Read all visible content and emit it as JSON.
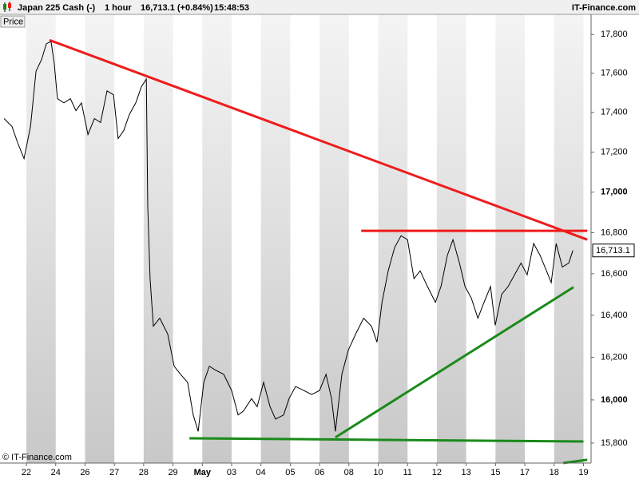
{
  "chart_data": {
    "type": "line",
    "title": "Japan 225 Cash (-)",
    "interval": "1 hour",
    "last_quote": "16,713.1 (+0.84%)",
    "time": "15:48:53",
    "source": "IT-Finance.com",
    "y_label": "Price",
    "copyright": "© IT-Finance.com",
    "log_scale": true,
    "xlim": [
      -0.9,
      19.26
    ],
    "ylim": [
      15708,
      17905
    ],
    "xticks": [
      {
        "value": 0,
        "label": "22"
      },
      {
        "value": 1,
        "label": "24"
      },
      {
        "value": 2,
        "label": "26"
      },
      {
        "value": 3,
        "label": "27"
      },
      {
        "value": 4,
        "label": "28"
      },
      {
        "value": 5,
        "label": "29"
      },
      {
        "value": 6,
        "label": "May"
      },
      {
        "value": 7,
        "label": "03"
      },
      {
        "value": 8,
        "label": "04"
      },
      {
        "value": 9,
        "label": "05"
      },
      {
        "value": 10,
        "label": "06"
      },
      {
        "value": 11,
        "label": "08"
      },
      {
        "value": 12,
        "label": "10"
      },
      {
        "value": 13,
        "label": "11"
      },
      {
        "value": 14,
        "label": "12"
      },
      {
        "value": 15,
        "label": "13"
      },
      {
        "value": 16,
        "label": "15"
      },
      {
        "value": 17,
        "label": "17"
      },
      {
        "value": 18,
        "label": "18"
      },
      {
        "value": 19,
        "label": "19"
      }
    ],
    "yticks": [
      {
        "value": 15800,
        "label": "15,800"
      },
      {
        "value": 16000,
        "label": "16,000"
      },
      {
        "value": 16200,
        "label": "16,200"
      },
      {
        "value": 16400,
        "label": "16,400"
      },
      {
        "value": 16600,
        "label": "16,600"
      },
      {
        "value": 16800,
        "label": "16,800"
      },
      {
        "value": 17000,
        "label": "17,000"
      },
      {
        "value": 17200,
        "label": "17,200"
      },
      {
        "value": 17400,
        "label": "17,400"
      },
      {
        "value": 17600,
        "label": "17,600"
      },
      {
        "value": 17800,
        "label": "17,800"
      }
    ],
    "last_price": {
      "value": 16713.1,
      "label": "16,713.1"
    },
    "series": [
      {
        "color": "#000000",
        "x": [
          -0.76,
          -0.49,
          -0.3,
          -0.08,
          0.14,
          0.33,
          0.52,
          0.68,
          0.84,
          0.95,
          1.06,
          1.28,
          1.5,
          1.69,
          1.88,
          2.1,
          2.32,
          2.53,
          2.75,
          2.97,
          3.13,
          3.32,
          3.51,
          3.73,
          3.92,
          4.09,
          4.14,
          4.22,
          4.33,
          4.55,
          4.82,
          5.04,
          5.26,
          5.5,
          5.69,
          5.86,
          6.05,
          6.24,
          6.46,
          6.73,
          7.0,
          7.22,
          7.41,
          7.68,
          7.87,
          8.09,
          8.31,
          8.5,
          8.77,
          8.96,
          9.18,
          9.46,
          9.73,
          10.0,
          10.22,
          10.41,
          10.54,
          10.76,
          10.98,
          11.23,
          11.5,
          11.77,
          11.96,
          12.13,
          12.34,
          12.56,
          12.78,
          13.0,
          13.22,
          13.43,
          13.68,
          13.95,
          14.14,
          14.36,
          14.55,
          14.77,
          14.96,
          15.18,
          15.4,
          15.61,
          15.83,
          15.99,
          16.21,
          16.43,
          16.65,
          16.87,
          17.08,
          17.3,
          17.52,
          17.74,
          17.9,
          18.07,
          18.28,
          18.5,
          18.64
        ],
        "values": [
          17369,
          17329,
          17248,
          17167,
          17329,
          17611,
          17671,
          17752,
          17764,
          17651,
          17470,
          17449,
          17470,
          17409,
          17449,
          17288,
          17369,
          17349,
          17510,
          17490,
          17268,
          17308,
          17389,
          17449,
          17530,
          17570,
          16925,
          16576,
          16348,
          16386,
          16310,
          16158,
          16120,
          16082,
          15930,
          15854,
          16082,
          16158,
          16139,
          16120,
          16044,
          15930,
          15949,
          16006,
          15968,
          16082,
          15968,
          15911,
          15930,
          16006,
          16063,
          16044,
          16025,
          16044,
          16120,
          16006,
          15854,
          16120,
          16234,
          16310,
          16386,
          16348,
          16272,
          16462,
          16614,
          16728,
          16785,
          16766,
          16576,
          16614,
          16538,
          16462,
          16538,
          16690,
          16766,
          16652,
          16538,
          16481,
          16386,
          16462,
          16538,
          16352,
          16500,
          16538,
          16595,
          16652,
          16595,
          16747,
          16690,
          16614,
          16557,
          16747,
          16633,
          16652,
          16713.1
        ]
      }
    ],
    "trendlines": [
      {
        "color": "#ee1c1c",
        "x": [
          0.79,
          19.13
        ],
        "values": [
          17771,
          16766
        ]
      },
      {
        "color": "#ee1c1c",
        "x": [
          11.42,
          19.13
        ],
        "values": [
          16809,
          16809
        ]
      },
      {
        "color": "#1a8a1a",
        "x": [
          10.54,
          18.66
        ],
        "values": [
          15826,
          16535
        ]
      },
      {
        "color": "#1a8a1a",
        "x": [
          5.56,
          19.0
        ],
        "values": [
          15822,
          15807
        ]
      },
      {
        "color": "#1a8a1a",
        "x": [
          18.31,
          19.13
        ],
        "values": [
          15708,
          15723
        ]
      }
    ]
  }
}
